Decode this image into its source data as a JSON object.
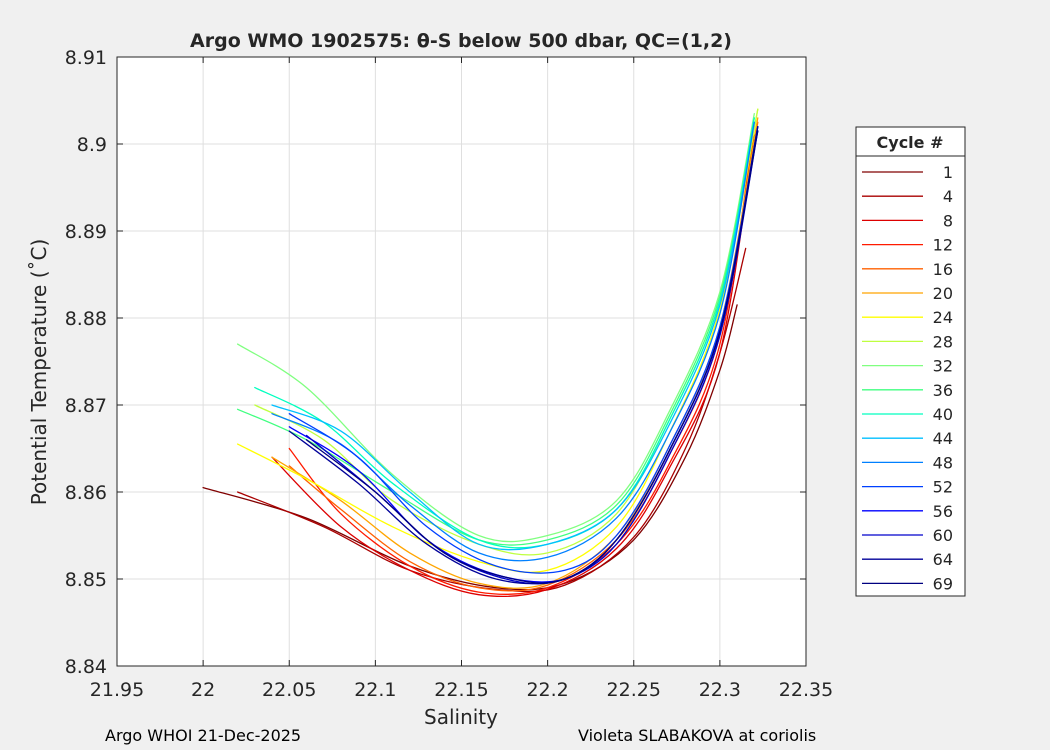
{
  "chart_data": {
    "type": "line",
    "title": "Argo WMO 1902575: θ-S below 500 dbar,  QC=(1,2)",
    "xlabel": "Salinity",
    "ylabel": "Potential Temperature (˚C)",
    "xlim": [
      21.95,
      22.35
    ],
    "ylim": [
      8.84,
      8.91
    ],
    "xticks": [
      21.95,
      22,
      22.05,
      22.1,
      22.15,
      22.2,
      22.25,
      22.3,
      22.35
    ],
    "xtick_labels": [
      "21.95",
      "22",
      "22.05",
      "22.1",
      "22.15",
      "22.2",
      "22.25",
      "22.3",
      "22.35"
    ],
    "yticks": [
      8.84,
      8.85,
      8.86,
      8.87,
      8.88,
      8.89,
      8.9,
      8.91
    ],
    "ytick_labels": [
      "8.84",
      "8.85",
      "8.86",
      "8.87",
      "8.88",
      "8.89",
      "8.9",
      "8.91"
    ],
    "grid": true,
    "legend_position": "right",
    "legend_title": "Cycle #",
    "series": [
      {
        "name": "1",
        "color": "#800000",
        "x": [
          22.0,
          22.06,
          22.12,
          22.17,
          22.21,
          22.25,
          22.28,
          22.3,
          22.31
        ],
        "y": [
          8.8605,
          8.857,
          8.8515,
          8.849,
          8.8495,
          8.8545,
          8.864,
          8.874,
          8.8815
        ]
      },
      {
        "name": "4",
        "color": "#aa0000",
        "x": [
          22.02,
          22.07,
          22.12,
          22.17,
          22.21,
          22.25,
          22.28,
          22.3,
          22.315
        ],
        "y": [
          8.86,
          8.856,
          8.851,
          8.8488,
          8.8493,
          8.8548,
          8.865,
          8.876,
          8.888
        ]
      },
      {
        "name": "8",
        "color": "#dd0000",
        "x": [
          22.04,
          22.08,
          22.12,
          22.16,
          22.2,
          22.24,
          22.27,
          22.3,
          22.32
        ],
        "y": [
          8.864,
          8.856,
          8.851,
          8.8482,
          8.8488,
          8.8535,
          8.8625,
          8.876,
          8.901
        ]
      },
      {
        "name": "12",
        "color": "#ff1a00",
        "x": [
          22.05,
          22.08,
          22.12,
          22.16,
          22.2,
          22.24,
          22.27,
          22.3,
          22.32
        ],
        "y": [
          8.865,
          8.8575,
          8.8515,
          8.8485,
          8.849,
          8.854,
          8.863,
          8.877,
          8.902
        ]
      },
      {
        "name": "16",
        "color": "#ff6000",
        "x": [
          22.05,
          22.08,
          22.12,
          22.16,
          22.2,
          22.24,
          22.27,
          22.3,
          22.322
        ],
        "y": [
          8.863,
          8.858,
          8.852,
          8.849,
          8.8493,
          8.8545,
          8.864,
          8.878,
          8.9025
        ]
      },
      {
        "name": "20",
        "color": "#ffa500",
        "x": [
          22.04,
          22.08,
          22.12,
          22.16,
          22.2,
          22.24,
          22.27,
          22.3,
          22.322
        ],
        "y": [
          8.864,
          8.859,
          8.853,
          8.8495,
          8.8495,
          8.855,
          8.865,
          8.879,
          8.903
        ]
      },
      {
        "name": "24",
        "color": "#ffff00",
        "x": [
          22.02,
          22.06,
          22.11,
          22.16,
          22.2,
          22.24,
          22.27,
          22.3,
          22.322
        ],
        "y": [
          8.8655,
          8.8615,
          8.856,
          8.852,
          8.851,
          8.856,
          8.8665,
          8.881,
          8.904
        ]
      },
      {
        "name": "28",
        "color": "#bfff40",
        "x": [
          22.03,
          22.07,
          22.11,
          22.16,
          22.2,
          22.24,
          22.27,
          22.3,
          22.322
        ],
        "y": [
          8.87,
          8.866,
          8.859,
          8.854,
          8.853,
          8.8575,
          8.868,
          8.882,
          8.904
        ]
      },
      {
        "name": "32",
        "color": "#80ff80",
        "x": [
          22.02,
          22.06,
          22.11,
          22.16,
          22.2,
          22.24,
          22.27,
          22.3,
          22.32
        ],
        "y": [
          8.877,
          8.872,
          8.862,
          8.855,
          8.855,
          8.859,
          8.869,
          8.883,
          8.9035
        ]
      },
      {
        "name": "36",
        "color": "#40ff80",
        "x": [
          22.02,
          22.06,
          22.11,
          22.16,
          22.2,
          22.24,
          22.27,
          22.3,
          22.32
        ],
        "y": [
          8.8695,
          8.866,
          8.86,
          8.8545,
          8.8545,
          8.8585,
          8.8685,
          8.8825,
          8.903
        ]
      },
      {
        "name": "40",
        "color": "#00ffbf",
        "x": [
          22.03,
          22.07,
          22.11,
          22.16,
          22.2,
          22.24,
          22.27,
          22.3,
          22.32
        ],
        "y": [
          8.872,
          8.868,
          8.861,
          8.8545,
          8.854,
          8.858,
          8.868,
          8.882,
          8.903
        ]
      },
      {
        "name": "44",
        "color": "#00bfff",
        "x": [
          22.04,
          22.08,
          22.12,
          22.16,
          22.2,
          22.24,
          22.27,
          22.3,
          22.32
        ],
        "y": [
          8.87,
          8.867,
          8.86,
          8.854,
          8.854,
          8.858,
          8.8675,
          8.8815,
          8.9025
        ]
      },
      {
        "name": "48",
        "color": "#0080ff",
        "x": [
          22.04,
          22.08,
          22.12,
          22.16,
          22.2,
          22.24,
          22.27,
          22.3,
          22.32
        ],
        "y": [
          8.869,
          8.8655,
          8.8585,
          8.853,
          8.8525,
          8.857,
          8.8665,
          8.8805,
          8.9025
        ]
      },
      {
        "name": "52",
        "color": "#0040ff",
        "x": [
          22.05,
          22.09,
          22.13,
          22.17,
          22.21,
          22.24,
          22.27,
          22.3,
          22.322
        ],
        "y": [
          8.869,
          8.864,
          8.856,
          8.8515,
          8.851,
          8.855,
          8.865,
          8.879,
          8.902
        ]
      },
      {
        "name": "56",
        "color": "#0000ff",
        "x": [
          22.05,
          22.09,
          22.13,
          22.17,
          22.21,
          22.24,
          22.27,
          22.3,
          22.322
        ],
        "y": [
          8.8675,
          8.8625,
          8.8545,
          8.8505,
          8.85,
          8.8545,
          8.8645,
          8.8785,
          8.902
        ]
      },
      {
        "name": "60",
        "color": "#0000cc",
        "x": [
          22.06,
          22.1,
          22.14,
          22.18,
          22.21,
          22.24,
          22.27,
          22.3,
          22.322
        ],
        "y": [
          8.8665,
          8.86,
          8.853,
          8.8498,
          8.85,
          8.854,
          8.864,
          8.878,
          8.9015
        ]
      },
      {
        "name": "64",
        "color": "#000099",
        "x": [
          22.05,
          22.09,
          22.13,
          22.17,
          22.21,
          22.24,
          22.27,
          22.3,
          22.322
        ],
        "y": [
          8.867,
          8.861,
          8.854,
          8.85,
          8.85,
          8.8545,
          8.8645,
          8.8785,
          8.902
        ]
      },
      {
        "name": "69",
        "color": "#000080",
        "x": [
          22.06,
          22.1,
          22.14,
          22.18,
          22.21,
          22.24,
          22.27,
          22.3,
          22.322
        ],
        "y": [
          8.866,
          8.86,
          8.853,
          8.85,
          8.85,
          8.8545,
          8.8645,
          8.8785,
          8.9015
        ]
      }
    ]
  },
  "footer": {
    "left": "Argo WHOI 21-Dec-2025",
    "right": "Violeta SLABAKOVA at coriolis"
  }
}
